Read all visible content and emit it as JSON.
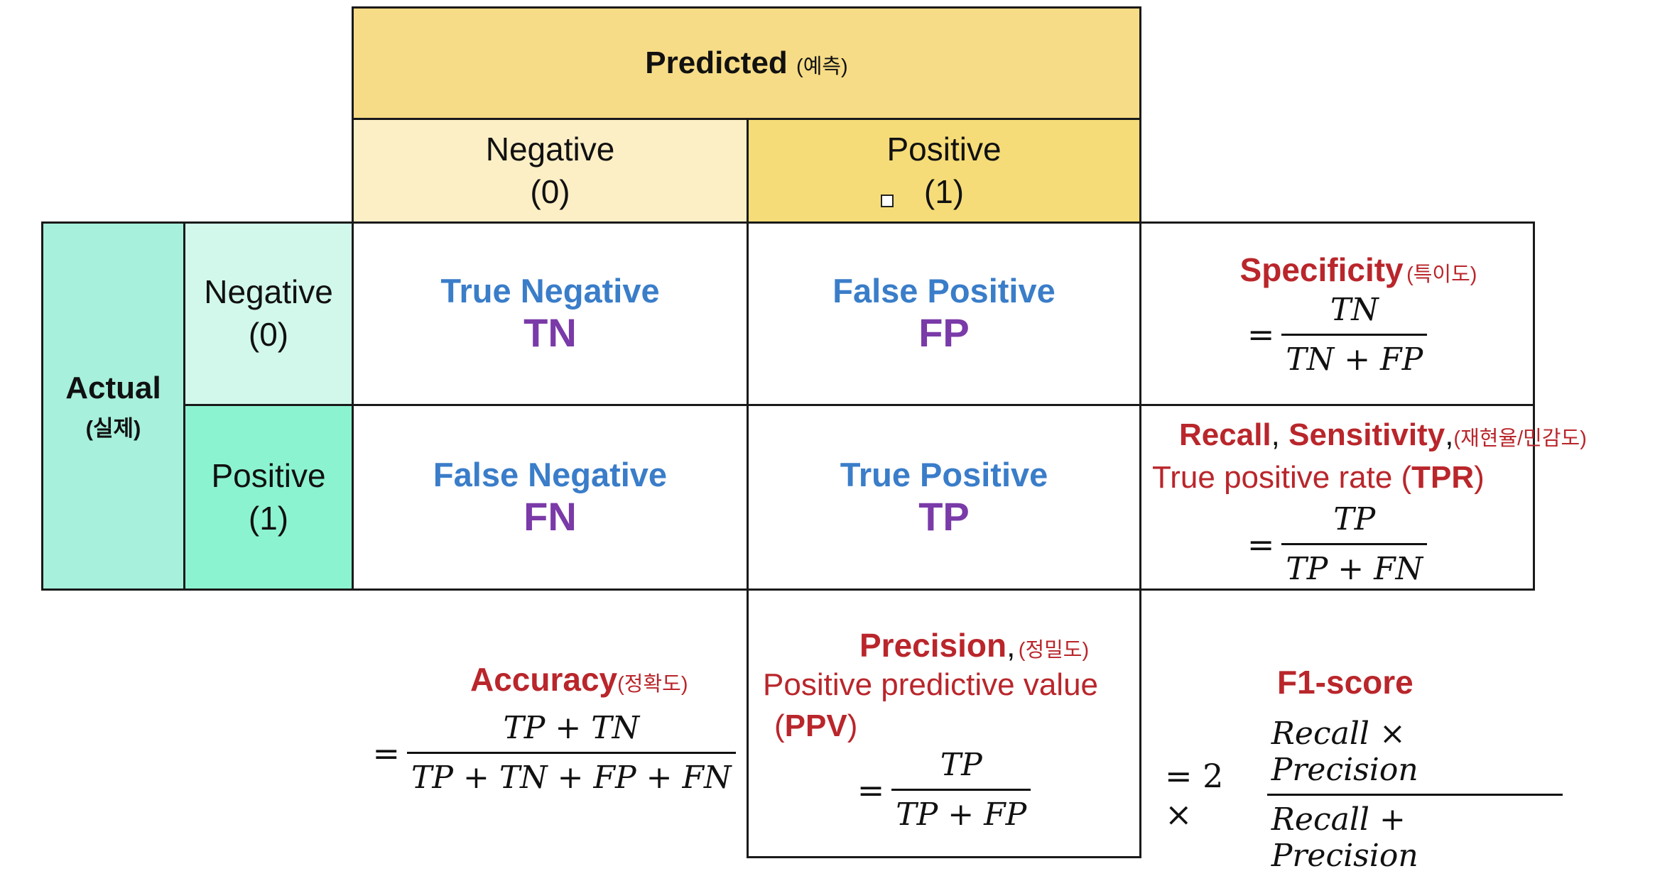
{
  "header": {
    "predicted": "Predicted",
    "predicted_kr": "(예측)",
    "actual": "Actual",
    "actual_kr": "(실제)"
  },
  "columns": [
    {
      "label": "Negative",
      "value": "(0)"
    },
    {
      "label": "Positive",
      "value": "(1)"
    }
  ],
  "rows": [
    {
      "label": "Negative",
      "value": "(0)"
    },
    {
      "label": "Positive",
      "value": "(1)"
    }
  ],
  "cells": {
    "tn": {
      "name": "True Negative",
      "abbr": "TN"
    },
    "fp": {
      "name": "False Positive",
      "abbr": "FP"
    },
    "fn": {
      "name": "False Negative",
      "abbr": "FN"
    },
    "tp": {
      "name": "True Positive",
      "abbr": "TP"
    }
  },
  "metrics": {
    "specificity": {
      "title": "Specificity",
      "title_kr": "(특이도)",
      "eq": "=",
      "num": "TN",
      "den": "TN + FP"
    },
    "recall": {
      "title_a": "Recall",
      "sep1": ", ",
      "title_b": "Sensitivity",
      "sep2": ",",
      "title_kr": "(재현율/민감도)",
      "line2": "True positive rate (",
      "line2_abbr": "TPR",
      "line2_end": ")",
      "eq": "=",
      "num": "TP",
      "den": "TP + FN"
    },
    "accuracy": {
      "title": "Accuracy",
      "title_kr": "(정확도)",
      "eq": "=",
      "num": "TP + TN",
      "den": "TP + TN + FP + FN"
    },
    "precision": {
      "title": "Precision",
      "sep": ",",
      "title_kr": "(정밀도)",
      "line2": "Positive predictive value",
      "line3_open": "(",
      "line3_abbr": "PPV",
      "line3_close": ")",
      "eq": "=",
      "num": "TP",
      "den": "TP + FP"
    },
    "f1": {
      "title": "F1-score",
      "eq": "= 2 ×",
      "num": "Recall × Precision",
      "den": "Recall + Precision"
    }
  },
  "colors": {
    "predicted_header": "#f6dc86",
    "neg_col_header": "#fcefc6",
    "pos_col_header": "#f6dc78",
    "actual_header": "#a6f0dc",
    "neg_row_header": "#d2f8ec",
    "pos_row_header": "#8cf3d0",
    "title_red": "#b9262b",
    "cell_blue": "#3a7dc9",
    "abbr_purple": "#7a3aa8"
  }
}
